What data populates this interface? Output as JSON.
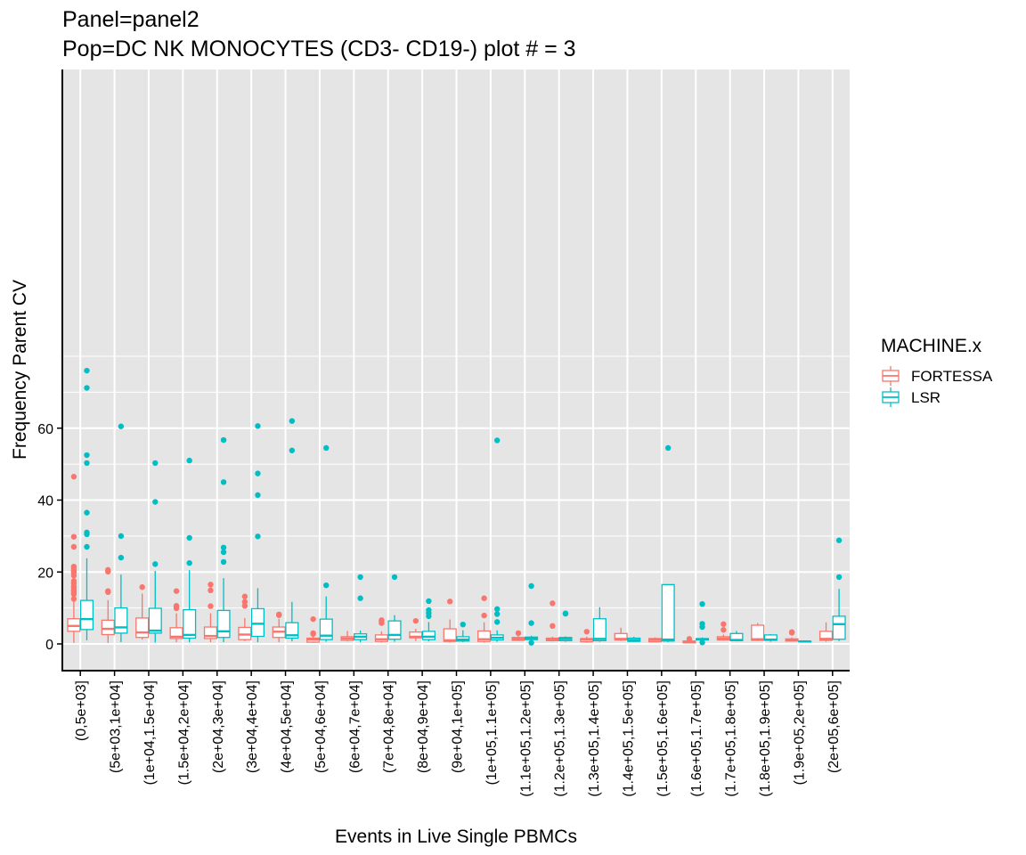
{
  "title_line1": "Panel=panel2",
  "title_line2": "Pop=DC NK MONOCYTES (CD3- CD19-) plot # = 3",
  "chart_data": {
    "type": "boxplot",
    "title": "Panel=panel2\nPop=DC NK MONOCYTES (CD3- CD19-) plot # = 3",
    "xlabel": "Events in Live Single PBMCs",
    "ylabel": "Frequency Parent CV",
    "ylim": [
      -3.5,
      80
    ],
    "yticks": [
      0,
      20,
      40,
      60
    ],
    "grid": true,
    "legend": {
      "title": "MACHINE.x",
      "position": "right",
      "entries": [
        "FORTESSA",
        "LSR"
      ]
    },
    "colors": {
      "FORTESSA": "#F8766D",
      "LSR": "#00BFC4",
      "panel_bg": "#E5E5E5",
      "grid": "#FFFFFF"
    },
    "categories": [
      "(0,5e+03]",
      "(5e+03,1e+04]",
      "(1e+04,1.5e+04]",
      "(1.5e+04,2e+04]",
      "(2e+04,3e+04]",
      "(3e+04,4e+04]",
      "(4e+04,5e+04]",
      "(5e+04,6e+04]",
      "(6e+04,7e+04]",
      "(7e+04,8e+04]",
      "(8e+04,9e+04]",
      "(9e+04,1e+05]",
      "(1e+05,1.1e+05]",
      "(1.1e+05,1.2e+05]",
      "(1.2e+05,1.3e+05]",
      "(1.3e+05,1.4e+05]",
      "(1.4e+05,1.5e+05]",
      "(1.5e+05,1.6e+05]",
      "(1.6e+05,1.7e+05]",
      "(1.7e+05,1.8e+05]",
      "(1.8e+05,1.9e+05]",
      "(1.9e+05,2e+05]",
      "(2e+05,6e+05]"
    ],
    "series": [
      {
        "name": "FORTESSA",
        "boxes": [
          {
            "min": 0.3,
            "q1": 3.5,
            "median": 5.0,
            "q3": 7.0,
            "max": 12.0,
            "outliers": [
              12.5,
              13.8,
              14.3,
              14.7,
              15.0,
              15.6,
              16.0,
              16.8,
              17.5,
              19.0,
              19.8,
              20.3,
              20.6,
              21.2,
              21.5,
              27.0,
              29.8,
              46.5
            ]
          },
          {
            "min": 0.3,
            "q1": 2.6,
            "median": 4.2,
            "q3": 6.6,
            "max": 12.2,
            "outliers": [
              14.4,
              14.7,
              20.1,
              20.3,
              20.6
            ]
          },
          {
            "min": 1.2,
            "q1": 1.8,
            "median": 3.2,
            "q3": 7.2,
            "max": 14.0,
            "outliers": [
              15.8
            ]
          },
          {
            "min": 0.5,
            "q1": 1.5,
            "median": 2.0,
            "q3": 4.5,
            "max": 8.5,
            "outliers": [
              9.9,
              10.2,
              10.6,
              14.7
            ]
          },
          {
            "min": 0.5,
            "q1": 1.5,
            "median": 2.2,
            "q3": 4.7,
            "max": 8.5,
            "outliers": [
              10.5,
              14.9,
              16.5
            ]
          },
          {
            "min": 0.8,
            "q1": 1.2,
            "median": 2.6,
            "q3": 4.6,
            "max": 7.2,
            "outliers": [
              10.6,
              11.7,
              13.2
            ]
          },
          {
            "min": 0.5,
            "q1": 1.8,
            "median": 3.4,
            "q3": 4.7,
            "max": 7.0,
            "outliers": [
              8.0,
              8.2
            ]
          },
          {
            "min": 0.3,
            "q1": 0.5,
            "median": 1.2,
            "q3": 1.6,
            "max": 2.2,
            "outliers": [
              2.8,
              3.0,
              6.9
            ]
          },
          {
            "min": 0.7,
            "q1": 1.0,
            "median": 1.5,
            "q3": 2.0,
            "max": 3.6,
            "outliers": []
          },
          {
            "min": 0.4,
            "q1": 0.7,
            "median": 1.3,
            "q3": 2.5,
            "max": 3.5,
            "outliers": [
              5.8,
              6.4,
              6.6
            ]
          },
          {
            "min": 0.8,
            "q1": 1.7,
            "median": 2.0,
            "q3": 3.3,
            "max": 4.2,
            "outliers": [
              6.4
            ]
          },
          {
            "min": 0.4,
            "q1": 0.7,
            "median": 1.0,
            "q3": 4.2,
            "max": 6.8,
            "outliers": [
              11.8
            ]
          },
          {
            "min": 0.4,
            "q1": 0.7,
            "median": 1.3,
            "q3": 3.6,
            "max": 6.0,
            "outliers": [
              7.9,
              12.7
            ]
          },
          {
            "min": 0.8,
            "q1": 1.0,
            "median": 1.4,
            "q3": 1.8,
            "max": 2.2,
            "outliers": [
              3.0
            ]
          },
          {
            "min": 0.7,
            "q1": 0.9,
            "median": 1.3,
            "q3": 1.6,
            "max": 2.0,
            "outliers": [
              5.0,
              11.3
            ]
          },
          {
            "min": 0.3,
            "q1": 0.6,
            "median": 1.2,
            "q3": 1.5,
            "max": 2.0,
            "outliers": [
              3.4
            ]
          },
          {
            "min": 0.8,
            "q1": 1.1,
            "median": 1.4,
            "q3": 2.9,
            "max": 4.5,
            "outliers": []
          },
          {
            "min": 0.5,
            "q1": 0.6,
            "median": 1.1,
            "q3": 1.5,
            "max": 1.8,
            "outliers": []
          },
          {
            "min": 0.2,
            "q1": 0.3,
            "median": 0.6,
            "q3": 0.8,
            "max": 1.1,
            "outliers": [
              1.4
            ]
          },
          {
            "min": 0.9,
            "q1": 1.1,
            "median": 1.5,
            "q3": 2.0,
            "max": 2.6,
            "outliers": [
              3.9,
              5.5
            ]
          },
          {
            "min": 0.8,
            "q1": 1.0,
            "median": 1.3,
            "q3": 5.2,
            "max": 5.8,
            "outliers": []
          },
          {
            "min": 0.7,
            "q1": 0.8,
            "median": 1.0,
            "q3": 1.4,
            "max": 1.8,
            "outliers": [
              3.1,
              3.3
            ]
          },
          {
            "min": 0.6,
            "q1": 1.0,
            "median": 1.4,
            "q3": 3.5,
            "max": 6.0,
            "outliers": []
          }
        ]
      },
      {
        "name": "LSR",
        "boxes": [
          {
            "min": 1.0,
            "q1": 4.0,
            "median": 6.9,
            "q3": 12.1,
            "max": 23.8,
            "outliers": [
              27.0,
              30.5,
              31.0,
              36.5,
              50.3,
              52.5,
              71.2,
              76.0
            ]
          },
          {
            "min": 0.5,
            "q1": 3.0,
            "median": 4.6,
            "q3": 10.0,
            "max": 19.3,
            "outliers": [
              24.0,
              30.0,
              60.5
            ]
          },
          {
            "min": 0.4,
            "q1": 3.0,
            "median": 3.7,
            "q3": 9.9,
            "max": 20.3,
            "outliers": [
              22.2,
              39.5,
              50.3
            ]
          },
          {
            "min": 0.5,
            "q1": 1.6,
            "median": 2.5,
            "q3": 9.5,
            "max": 20.5,
            "outliers": [
              22.5,
              29.5,
              51.0
            ]
          },
          {
            "min": 0.5,
            "q1": 1.8,
            "median": 3.5,
            "q3": 9.3,
            "max": 18.3,
            "outliers": [
              22.8,
              25.5,
              26.8,
              45.0,
              56.7
            ]
          },
          {
            "min": 0.5,
            "q1": 2.1,
            "median": 5.6,
            "q3": 9.8,
            "max": 15.5,
            "outliers": [
              29.9,
              41.4,
              47.4,
              60.6
            ]
          },
          {
            "min": 0.7,
            "q1": 1.6,
            "median": 2.4,
            "q3": 5.9,
            "max": 11.7,
            "outliers": [
              53.8,
              62.0
            ]
          },
          {
            "min": 0.6,
            "q1": 1.2,
            "median": 2.3,
            "q3": 6.9,
            "max": 13.2,
            "outliers": [
              16.3,
              54.5
            ]
          },
          {
            "min": 0.5,
            "q1": 1.2,
            "median": 2.0,
            "q3": 2.8,
            "max": 3.7,
            "outliers": [
              12.7,
              18.6
            ]
          },
          {
            "min": 0.6,
            "q1": 1.3,
            "median": 2.5,
            "q3": 6.4,
            "max": 8.0,
            "outliers": [
              18.6
            ]
          },
          {
            "min": 0.7,
            "q1": 1.2,
            "median": 2.0,
            "q3": 3.5,
            "max": 6.1,
            "outliers": [
              7.7,
              8.6,
              9.4,
              11.9
            ]
          },
          {
            "min": 0.5,
            "q1": 0.8,
            "median": 1.2,
            "q3": 2.0,
            "max": 3.8,
            "outliers": [
              5.4
            ]
          },
          {
            "min": 0.6,
            "q1": 1.1,
            "median": 1.7,
            "q3": 2.5,
            "max": 3.8,
            "outliers": [
              6.1,
              8.3,
              9.7,
              56.6
            ]
          },
          {
            "min": 0.6,
            "q1": 1.2,
            "median": 1.6,
            "q3": 1.9,
            "max": 2.3,
            "outliers": [
              0.3,
              5.8,
              16.1
            ]
          },
          {
            "min": 0.6,
            "q1": 0.9,
            "median": 1.4,
            "q3": 1.8,
            "max": 2.1,
            "outliers": [
              8.4,
              8.5
            ]
          },
          {
            "min": 0.6,
            "q1": 0.9,
            "median": 1.4,
            "q3": 7.0,
            "max": 10.2,
            "outliers": []
          },
          {
            "min": 0.5,
            "q1": 0.7,
            "median": 1.1,
            "q3": 1.6,
            "max": 2.0,
            "outliers": []
          },
          {
            "min": 0.5,
            "q1": 0.8,
            "median": 1.2,
            "q3": 16.5,
            "max": 16.5,
            "outliers": [
              54.5
            ]
          },
          {
            "min": 0.9,
            "q1": 1.1,
            "median": 1.3,
            "q3": 1.5,
            "max": 1.8,
            "outliers": [
              0.4,
              4.7,
              5.6,
              11.1
            ]
          },
          {
            "min": 0.7,
            "q1": 0.9,
            "median": 1.1,
            "q3": 2.9,
            "max": 3.6,
            "outliers": []
          },
          {
            "min": 0.6,
            "q1": 1.0,
            "median": 1.2,
            "q3": 2.5,
            "max": 2.7,
            "outliers": []
          },
          {
            "min": 0.6,
            "q1": 0.6,
            "median": 0.7,
            "q3": 0.7,
            "max": 0.8,
            "outliers": []
          },
          {
            "min": 0.8,
            "q1": 1.3,
            "median": 5.5,
            "q3": 7.7,
            "max": 15.3,
            "outliers": [
              18.6,
              28.8
            ]
          }
        ]
      }
    ]
  }
}
